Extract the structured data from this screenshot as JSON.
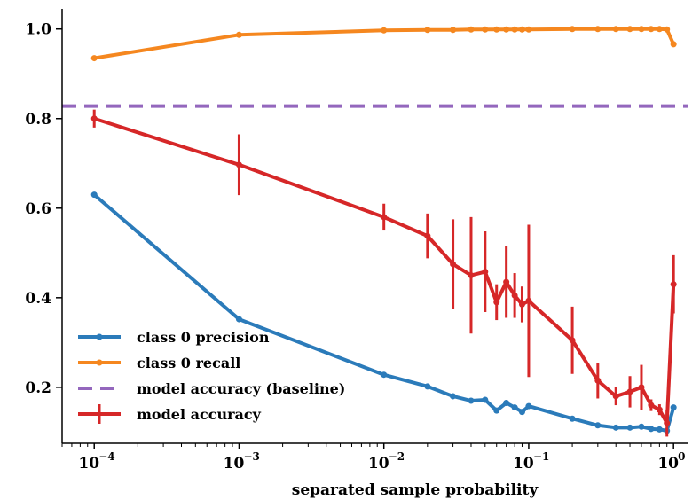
{
  "chart_data": {
    "type": "line",
    "title": "",
    "xlabel": "separated sample probability",
    "ylabel": "",
    "xscale": "log",
    "xlim": [
      6e-05,
      1.25
    ],
    "ylim": [
      0.075,
      1.045
    ],
    "yticks": [
      0.2,
      0.4,
      0.6,
      0.8,
      1.0
    ],
    "ytick_labels": [
      "0.2",
      "0.4",
      "0.6",
      "0.8",
      "1.0"
    ],
    "xticks": [
      {
        "value": 0.0001,
        "base": "10",
        "exp": "−4"
      },
      {
        "value": 0.001,
        "base": "10",
        "exp": "−3"
      },
      {
        "value": 0.01,
        "base": "10",
        "exp": "−2"
      },
      {
        "value": 0.1,
        "base": "10",
        "exp": "−1"
      },
      {
        "value": 1,
        "base": "10",
        "exp": "0"
      }
    ],
    "x": [
      0.0001,
      0.001,
      0.01,
      0.02,
      0.03,
      0.04,
      0.05,
      0.06,
      0.07,
      0.08,
      0.09,
      0.1,
      0.2,
      0.3,
      0.4,
      0.5,
      0.6,
      0.7,
      0.8,
      0.9,
      1.0
    ],
    "series": [
      {
        "name": "class 0 precision",
        "color": "#2b7bba",
        "style": "line-marker",
        "values": [
          0.63,
          0.352,
          0.228,
          0.202,
          0.18,
          0.17,
          0.172,
          0.148,
          0.165,
          0.155,
          0.145,
          0.158,
          0.13,
          0.115,
          0.11,
          0.11,
          0.112,
          0.107,
          0.106,
          0.103,
          0.155
        ]
      },
      {
        "name": "class 0 recall",
        "color": "#f5871f",
        "style": "line-marker",
        "values": [
          0.935,
          0.987,
          0.997,
          0.998,
          0.998,
          0.999,
          0.999,
          0.999,
          0.999,
          0.999,
          0.999,
          0.999,
          1.0,
          1.0,
          1.0,
          1.0,
          1.0,
          1.0,
          1.0,
          0.999,
          0.966
        ]
      },
      {
        "name": "model accuracy (baseline)",
        "color": "#9467bd",
        "style": "dashed-hline",
        "value": 0.828
      },
      {
        "name": "model accuracy",
        "color": "#d62728",
        "style": "errorbar",
        "values": [
          0.8,
          0.697,
          0.58,
          0.538,
          0.475,
          0.45,
          0.458,
          0.39,
          0.435,
          0.405,
          0.385,
          0.393,
          0.305,
          0.215,
          0.18,
          0.19,
          0.2,
          0.16,
          0.15,
          0.12,
          0.43
        ],
        "errors": [
          0.02,
          0.068,
          0.03,
          0.05,
          0.1,
          0.13,
          0.09,
          0.04,
          0.08,
          0.05,
          0.04,
          0.17,
          0.075,
          0.04,
          0.02,
          0.035,
          0.05,
          0.013,
          0.012,
          0.03,
          0.065
        ]
      }
    ],
    "legend_position": "lower-left"
  }
}
